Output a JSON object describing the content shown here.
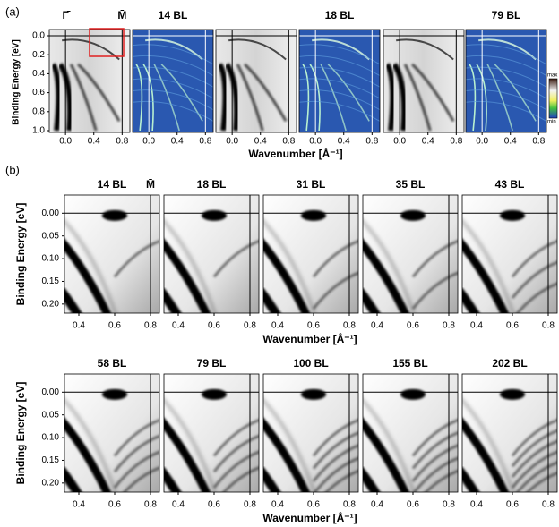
{
  "panel_a": {
    "label": "(a)",
    "y_label": "Binding Energy [eV]",
    "x_label": "Wavenumber [Å⁻¹]",
    "gamma": "Γ̄",
    "m_point": "M̄",
    "titles": [
      "14 BL",
      "18 BL",
      "79 BL"
    ],
    "colorbar": [
      "max",
      "min"
    ],
    "yticks": [
      {
        "value": 0,
        "label": "0.0"
      },
      0.2,
      0.4,
      0.6,
      0.8,
      {
        "value": 1,
        "label": "1.0"
      }
    ],
    "xticks": [
      {
        "value": 0,
        "label": "0.0"
      },
      0.4,
      0.8
    ]
  },
  "panel_b": {
    "label": "(b)",
    "y_label": "Binding Energy [eV]",
    "x_label": "Wavenumber [Å⁻¹]",
    "m_point": "M̄",
    "rows": [
      [
        "14 BL",
        "18 BL",
        "31 BL",
        "35 BL",
        "43 BL"
      ],
      [
        "58 BL",
        "79 BL",
        "100 BL",
        "155 BL",
        "202 BL"
      ]
    ],
    "yticks": [
      {
        "value": 0,
        "label": "0.00"
      },
      0.05,
      {
        "value": 0.1,
        "label": "0.10"
      },
      0.15,
      {
        "value": 0.2,
        "label": "0.20"
      }
    ],
    "xticks": [
      0.4,
      0.6,
      0.8
    ]
  }
}
